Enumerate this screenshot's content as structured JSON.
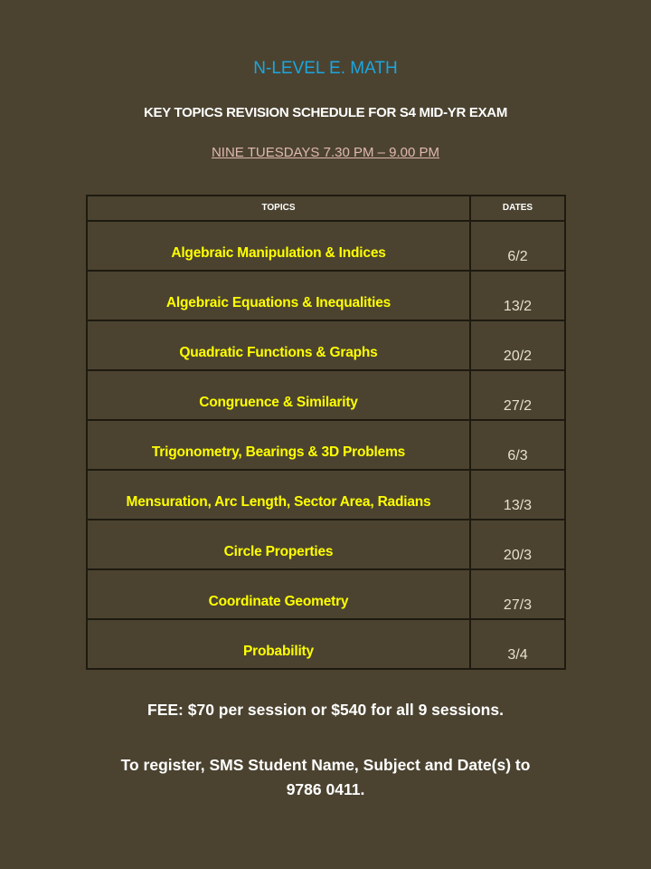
{
  "title": "N-LEVEL E. MATH",
  "subtitle": "KEY TOPICS REVISION SCHEDULE FOR S4 MID-YR EXAM",
  "schedule_time": "NINE TUESDAYS 7.30 PM – 9.00 PM",
  "table": {
    "headers": [
      "TOPICS",
      "DATES"
    ],
    "rows": [
      {
        "topic": "Algebraic Manipulation & Indices",
        "date": "6/2"
      },
      {
        "topic": "Algebraic Equations & Inequalities",
        "date": "13/2"
      },
      {
        "topic": "Quadratic Functions & Graphs",
        "date": "20/2"
      },
      {
        "topic": "Congruence & Similarity",
        "date": "27/2"
      },
      {
        "topic": "Trigonometry, Bearings & 3D Problems",
        "date": "6/3"
      },
      {
        "topic": "Mensuration, Arc Length, Sector Area, Radians",
        "date": "13/3"
      },
      {
        "topic": "Circle Properties",
        "date": "20/3"
      },
      {
        "topic": "Coordinate Geometry",
        "date": "27/3"
      },
      {
        "topic": "Probability",
        "date": "3/4"
      }
    ]
  },
  "fee": "FEE:  $70 per session or $540 for all 9 sessions.",
  "register_line1": "To register, SMS Student Name, Subject and Date(s) to",
  "register_line2": "9786 0411.",
  "colors": {
    "background": "#4b4330",
    "title": "#1ba6e0",
    "topic": "#ffff00"
  }
}
